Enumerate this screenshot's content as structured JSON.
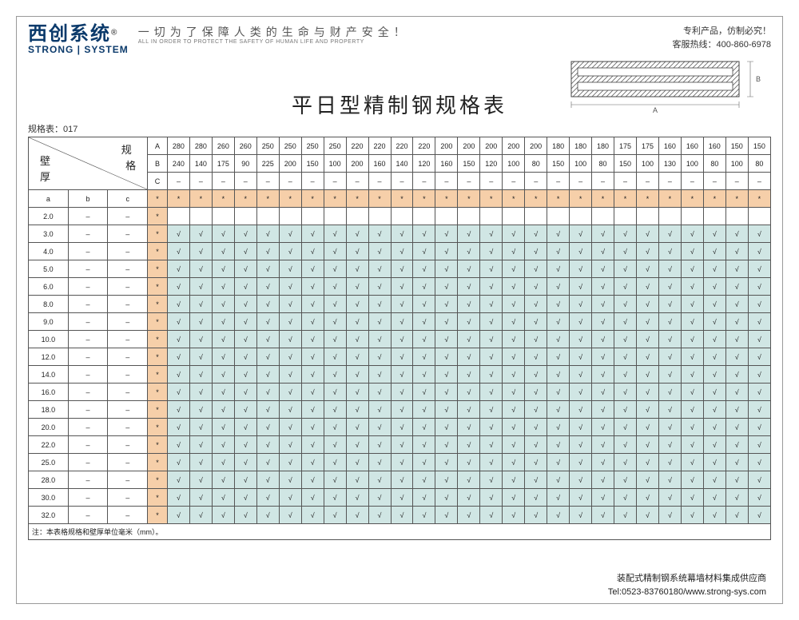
{
  "header": {
    "logo_cn": "西创系统",
    "logo_sup": "®",
    "logo_en": "STRONG | SYSTEM",
    "slogan_cn": "一切为了保障人类的生命与财产安全！",
    "slogan_en": "ALL IN ORDER TO PROTECT THE SAFETY OF HUMAN LIFE AND PROPERTY",
    "patent": "专利产品，仿制必究！",
    "hotline_label": "客服热线：",
    "hotline": "400-860-6978"
  },
  "title": "平日型精制钢规格表",
  "table_label": "规格表：017",
  "corner": {
    "spec": "规格",
    "wall": "壁厚"
  },
  "dim_labels": {
    "A": "A",
    "B": "B",
    "C": "C",
    "a": "a",
    "b": "b",
    "c": "c"
  },
  "columns_A": [
    "280",
    "280",
    "260",
    "260",
    "250",
    "250",
    "250",
    "250",
    "220",
    "220",
    "220",
    "220",
    "200",
    "200",
    "200",
    "200",
    "200",
    "180",
    "180",
    "180",
    "175",
    "175",
    "160",
    "160",
    "160",
    "150",
    "150"
  ],
  "columns_B": [
    "240",
    "140",
    "175",
    "90",
    "225",
    "200",
    "150",
    "100",
    "200",
    "160",
    "140",
    "120",
    "160",
    "150",
    "120",
    "100",
    "80",
    "150",
    "100",
    "80",
    "150",
    "100",
    "130",
    "100",
    "80",
    "100",
    "80"
  ],
  "columns_C": [
    "–",
    "–",
    "–",
    "–",
    "–",
    "–",
    "–",
    "–",
    "–",
    "–",
    "–",
    "–",
    "–",
    "–",
    "–",
    "–",
    "–",
    "–",
    "–",
    "–",
    "–",
    "–",
    "–",
    "–",
    "–",
    "–",
    "–"
  ],
  "rows": [
    {
      "a": "a",
      "b": "b",
      "c": "c",
      "star": "*",
      "fill": "orange",
      "cells": [
        "*",
        "*",
        "*",
        "*",
        "*",
        "*",
        "*",
        "*",
        "*",
        "*",
        "*",
        "*",
        "*",
        "*",
        "*",
        "*",
        "*",
        "*",
        "*",
        "*",
        "*",
        "*",
        "*",
        "*",
        "*",
        "*",
        "*"
      ]
    },
    {
      "a": "2.0",
      "b": "–",
      "c": "–",
      "star": "*",
      "fill": "none",
      "cells": [
        "",
        "",
        "",
        "",
        "",
        "",
        "",
        "",
        "",
        "",
        "",
        "",
        "",
        "",
        "",
        "",
        "",
        "",
        "",
        "",
        "",
        "",
        "",
        "",
        "",
        "",
        ""
      ]
    },
    {
      "a": "3.0",
      "b": "–",
      "c": "–",
      "star": "*",
      "fill": "teal",
      "cells": [
        "√",
        "√",
        "√",
        "√",
        "√",
        "√",
        "√",
        "√",
        "√",
        "√",
        "√",
        "√",
        "√",
        "√",
        "√",
        "√",
        "√",
        "√",
        "√",
        "√",
        "√",
        "√",
        "√",
        "√",
        "√",
        "√",
        "√"
      ]
    },
    {
      "a": "4.0",
      "b": "–",
      "c": "–",
      "star": "*",
      "fill": "teal",
      "cells": [
        "√",
        "√",
        "√",
        "√",
        "√",
        "√",
        "√",
        "√",
        "√",
        "√",
        "√",
        "√",
        "√",
        "√",
        "√",
        "√",
        "√",
        "√",
        "√",
        "√",
        "√",
        "√",
        "√",
        "√",
        "√",
        "√",
        "√"
      ]
    },
    {
      "a": "5.0",
      "b": "–",
      "c": "–",
      "star": "*",
      "fill": "teal",
      "cells": [
        "√",
        "√",
        "√",
        "√",
        "√",
        "√",
        "√",
        "√",
        "√",
        "√",
        "√",
        "√",
        "√",
        "√",
        "√",
        "√",
        "√",
        "√",
        "√",
        "√",
        "√",
        "√",
        "√",
        "√",
        "√",
        "√",
        "√"
      ]
    },
    {
      "a": "6.0",
      "b": "–",
      "c": "–",
      "star": "*",
      "fill": "teal",
      "cells": [
        "√",
        "√",
        "√",
        "√",
        "√",
        "√",
        "√",
        "√",
        "√",
        "√",
        "√",
        "√",
        "√",
        "√",
        "√",
        "√",
        "√",
        "√",
        "√",
        "√",
        "√",
        "√",
        "√",
        "√",
        "√",
        "√",
        "√"
      ]
    },
    {
      "a": "8.0",
      "b": "–",
      "c": "–",
      "star": "*",
      "fill": "teal",
      "cells": [
        "√",
        "√",
        "√",
        "√",
        "√",
        "√",
        "√",
        "√",
        "√",
        "√",
        "√",
        "√",
        "√",
        "√",
        "√",
        "√",
        "√",
        "√",
        "√",
        "√",
        "√",
        "√",
        "√",
        "√",
        "√",
        "√",
        "√"
      ]
    },
    {
      "a": "9.0",
      "b": "–",
      "c": "–",
      "star": "*",
      "fill": "teal",
      "cells": [
        "√",
        "√",
        "√",
        "√",
        "√",
        "√",
        "√",
        "√",
        "√",
        "√",
        "√",
        "√",
        "√",
        "√",
        "√",
        "√",
        "√",
        "√",
        "√",
        "√",
        "√",
        "√",
        "√",
        "√",
        "√",
        "√",
        "√"
      ]
    },
    {
      "a": "10.0",
      "b": "–",
      "c": "–",
      "star": "*",
      "fill": "teal",
      "cells": [
        "√",
        "√",
        "√",
        "√",
        "√",
        "√",
        "√",
        "√",
        "√",
        "√",
        "√",
        "√",
        "√",
        "√",
        "√",
        "√",
        "√",
        "√",
        "√",
        "√",
        "√",
        "√",
        "√",
        "√",
        "√",
        "√",
        "√"
      ]
    },
    {
      "a": "12.0",
      "b": "–",
      "c": "–",
      "star": "*",
      "fill": "teal",
      "cells": [
        "√",
        "√",
        "√",
        "√",
        "√",
        "√",
        "√",
        "√",
        "√",
        "√",
        "√",
        "√",
        "√",
        "√",
        "√",
        "√",
        "√",
        "√",
        "√",
        "√",
        "√",
        "√",
        "√",
        "√",
        "√",
        "√",
        "√"
      ]
    },
    {
      "a": "14.0",
      "b": "–",
      "c": "–",
      "star": "*",
      "fill": "teal",
      "cells": [
        "√",
        "√",
        "√",
        "√",
        "√",
        "√",
        "√",
        "√",
        "√",
        "√",
        "√",
        "√",
        "√",
        "√",
        "√",
        "√",
        "√",
        "√",
        "√",
        "√",
        "√",
        "√",
        "√",
        "√",
        "√",
        "√",
        "√"
      ]
    },
    {
      "a": "16.0",
      "b": "–",
      "c": "–",
      "star": "*",
      "fill": "teal",
      "cells": [
        "√",
        "√",
        "√",
        "√",
        "√",
        "√",
        "√",
        "√",
        "√",
        "√",
        "√",
        "√",
        "√",
        "√",
        "√",
        "√",
        "√",
        "√",
        "√",
        "√",
        "√",
        "√",
        "√",
        "√",
        "√",
        "√",
        "√"
      ]
    },
    {
      "a": "18.0",
      "b": "–",
      "c": "–",
      "star": "*",
      "fill": "teal",
      "cells": [
        "√",
        "√",
        "√",
        "√",
        "√",
        "√",
        "√",
        "√",
        "√",
        "√",
        "√",
        "√",
        "√",
        "√",
        "√",
        "√",
        "√",
        "√",
        "√",
        "√",
        "√",
        "√",
        "√",
        "√",
        "√",
        "√",
        "√"
      ]
    },
    {
      "a": "20.0",
      "b": "–",
      "c": "–",
      "star": "*",
      "fill": "teal",
      "cells": [
        "√",
        "√",
        "√",
        "√",
        "√",
        "√",
        "√",
        "√",
        "√",
        "√",
        "√",
        "√",
        "√",
        "√",
        "√",
        "√",
        "√",
        "√",
        "√",
        "√",
        "√",
        "√",
        "√",
        "√",
        "√",
        "√",
        "√"
      ]
    },
    {
      "a": "22.0",
      "b": "–",
      "c": "–",
      "star": "*",
      "fill": "teal",
      "cells": [
        "√",
        "√",
        "√",
        "√",
        "√",
        "√",
        "√",
        "√",
        "√",
        "√",
        "√",
        "√",
        "√",
        "√",
        "√",
        "√",
        "√",
        "√",
        "√",
        "√",
        "√",
        "√",
        "√",
        "√",
        "√",
        "√",
        "√"
      ]
    },
    {
      "a": "25.0",
      "b": "–",
      "c": "–",
      "star": "*",
      "fill": "teal",
      "cells": [
        "√",
        "√",
        "√",
        "√",
        "√",
        "√",
        "√",
        "√",
        "√",
        "√",
        "√",
        "√",
        "√",
        "√",
        "√",
        "√",
        "√",
        "√",
        "√",
        "√",
        "√",
        "√",
        "√",
        "√",
        "√",
        "√",
        "√"
      ]
    },
    {
      "a": "28.0",
      "b": "–",
      "c": "–",
      "star": "*",
      "fill": "teal",
      "cells": [
        "√",
        "√",
        "√",
        "√",
        "√",
        "√",
        "√",
        "√",
        "√",
        "√",
        "√",
        "√",
        "√",
        "√",
        "√",
        "√",
        "√",
        "√",
        "√",
        "√",
        "√",
        "√",
        "√",
        "√",
        "√",
        "√",
        "√"
      ]
    },
    {
      "a": "30.0",
      "b": "–",
      "c": "–",
      "star": "*",
      "fill": "teal",
      "cells": [
        "√",
        "√",
        "√",
        "√",
        "√",
        "√",
        "√",
        "√",
        "√",
        "√",
        "√",
        "√",
        "√",
        "√",
        "√",
        "√",
        "√",
        "√",
        "√",
        "√",
        "√",
        "√",
        "√",
        "√",
        "√",
        "√",
        "√"
      ]
    },
    {
      "a": "32.0",
      "b": "–",
      "c": "–",
      "star": "*",
      "fill": "teal",
      "cells": [
        "√",
        "√",
        "√",
        "√",
        "√",
        "√",
        "√",
        "√",
        "√",
        "√",
        "√",
        "√",
        "√",
        "√",
        "√",
        "√",
        "√",
        "√",
        "√",
        "√",
        "√",
        "√",
        "√",
        "√",
        "√",
        "√",
        "√"
      ]
    }
  ],
  "note": "注：本表格规格和壁厚单位毫米（mm）。",
  "footer": {
    "line1": "装配式精制钢系统幕墙材料集成供应商",
    "line2": "Tel:0523-83760180/www.strong-sys.com"
  },
  "style": {
    "orange": "#f6cfa9",
    "teal": "#d0e6e4",
    "col_widths": {
      "left3": 48,
      "star": 24,
      "data": 27
    }
  }
}
